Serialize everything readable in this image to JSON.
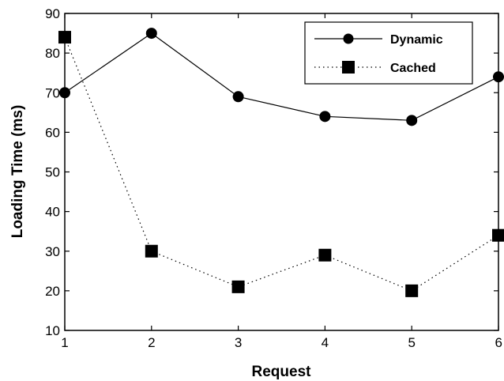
{
  "chart_data": {
    "type": "line",
    "xlabel": "Request",
    "ylabel": "Loading Time (ms)",
    "x": [
      1,
      2,
      3,
      4,
      5,
      6
    ],
    "xlim": [
      1,
      6
    ],
    "ylim": [
      10,
      90
    ],
    "xticks": [
      "1",
      "2",
      "3",
      "4",
      "5",
      "6"
    ],
    "yticks": [
      "10",
      "20",
      "30",
      "40",
      "50",
      "60",
      "70",
      "80",
      "90"
    ],
    "grid": false,
    "legend_position": "top-right",
    "series": [
      {
        "name": "Dynamic",
        "values": [
          70,
          85,
          69,
          64,
          63,
          74
        ],
        "marker": "circle",
        "line": "solid",
        "color": "#000000"
      },
      {
        "name": "Cached",
        "values": [
          84,
          30,
          21,
          29,
          20,
          34
        ],
        "marker": "square",
        "line": "dotted",
        "color": "#000000"
      }
    ]
  }
}
